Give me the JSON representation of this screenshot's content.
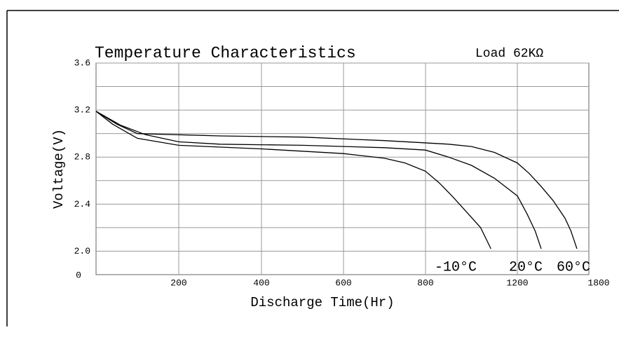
{
  "chart_data": {
    "type": "line",
    "title": "Temperature Characteristics",
    "subtitle": "Load 62KΩ",
    "x_label": "Discharge Time(Hr)",
    "y_label": "Voltage(V)",
    "origin_label": "0",
    "xlim": [
      0,
      1800
    ],
    "xticks": [
      200,
      400,
      600,
      800,
      1200,
      1800
    ],
    "ylim": [
      1.8,
      3.6
    ],
    "yticks": [
      {
        "value": 2.0,
        "label": "2.0"
      },
      2.4,
      2.8,
      3.2,
      3.6
    ],
    "yminor": [
      2.2,
      2.6,
      3.0,
      3.4
    ],
    "grid": true,
    "series": [
      {
        "name": "-10°C",
        "color": "#000000",
        "x": [
          0,
          40,
          100,
          200,
          400,
          600,
          700,
          750,
          800,
          860,
          920,
          980,
          1040,
          1085
        ],
        "values": [
          3.19,
          3.08,
          2.96,
          2.9,
          2.87,
          2.83,
          2.79,
          2.75,
          2.68,
          2.58,
          2.46,
          2.33,
          2.2,
          2.02
        ]
      },
      {
        "name": "20°C",
        "color": "#000000",
        "x": [
          0,
          60,
          120,
          200,
          300,
          500,
          700,
          800,
          900,
          1000,
          1100,
          1200,
          1280,
          1350,
          1400
        ],
        "values": [
          3.19,
          3.07,
          2.99,
          2.93,
          2.91,
          2.9,
          2.88,
          2.86,
          2.8,
          2.73,
          2.62,
          2.47,
          2.32,
          2.17,
          2.02
        ]
      },
      {
        "name": "60°C",
        "color": "#000000",
        "x": [
          0,
          50,
          100,
          300,
          500,
          700,
          900,
          1000,
          1100,
          1200,
          1300,
          1400,
          1500,
          1600,
          1650,
          1700
        ],
        "values": [
          3.19,
          3.08,
          3.0,
          2.98,
          2.97,
          2.94,
          2.91,
          2.89,
          2.84,
          2.75,
          2.66,
          2.55,
          2.43,
          2.28,
          2.17,
          2.02
        ]
      }
    ]
  }
}
